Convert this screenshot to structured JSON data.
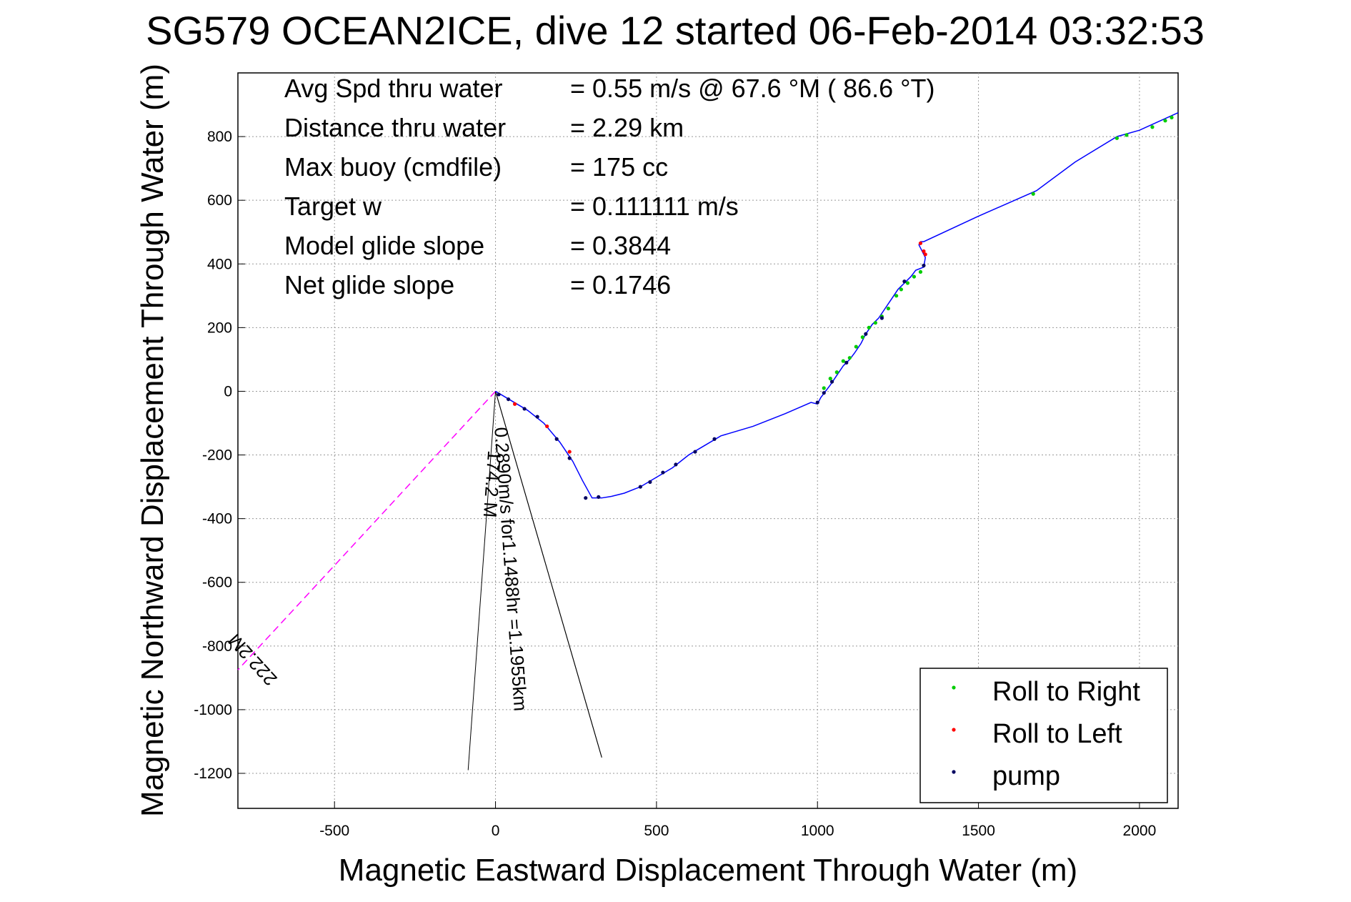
{
  "chart_data": {
    "type": "line",
    "title": "SG579 OCEAN2ICE, dive 12 started 06-Feb-2014 03:32:53",
    "xlabel": "Magnetic Eastward Displacement Through Water (m)",
    "ylabel": "Magnetic Northward Displacement Through Water (m)",
    "xlim": [
      -800,
      2120
    ],
    "ylim": [
      -1310,
      1000
    ],
    "xticks": [
      -500,
      0,
      500,
      1000,
      1500,
      2000
    ],
    "yticks": [
      -1200,
      -1000,
      -800,
      -600,
      -400,
      -200,
      0,
      200,
      400,
      600,
      800
    ],
    "grid": true,
    "legend_position": "bottom-right",
    "colors": {
      "track": "#0000ff",
      "current": "#ff00ff",
      "roll_right": "#00cc00",
      "roll_left": "#ff0000",
      "pump": "#000060",
      "lines": "#000000"
    },
    "stats": [
      {
        "label": "Avg Spd thru water",
        "value": "=  0.55 m/s @  67.6 °M ( 86.6 °T)"
      },
      {
        "label": "Distance thru water",
        "value": "=  2.29 km"
      },
      {
        "label": "Max buoy (cmdfile)",
        "value": "= 175 cc"
      },
      {
        "label": "Target w",
        "value": "= 0.111111 m/s"
      },
      {
        "label": "Model glide slope",
        "value": "= 0.3844"
      },
      {
        "label": "Net glide slope",
        "value": "= 0.1746"
      }
    ],
    "series": [
      {
        "name": "Roll to Right",
        "marker": "dot",
        "color": "#00cc00"
      },
      {
        "name": "Roll to Left",
        "marker": "dot",
        "color": "#ff0000"
      },
      {
        "name": "pump",
        "marker": "dot",
        "color": "#000060"
      }
    ],
    "track": [
      [
        0,
        0
      ],
      [
        50,
        -30
      ],
      [
        100,
        -60
      ],
      [
        150,
        -100
      ],
      [
        200,
        -160
      ],
      [
        240,
        -220
      ],
      [
        270,
        -280
      ],
      [
        300,
        -335
      ],
      [
        330,
        -335
      ],
      [
        360,
        -330
      ],
      [
        400,
        -320
      ],
      [
        450,
        -300
      ],
      [
        500,
        -270
      ],
      [
        550,
        -240
      ],
      [
        600,
        -200
      ],
      [
        650,
        -170
      ],
      [
        700,
        -140
      ],
      [
        800,
        -110
      ],
      [
        900,
        -70
      ],
      [
        980,
        -35
      ],
      [
        1000,
        -40
      ],
      [
        1010,
        -20
      ],
      [
        1025,
        0
      ],
      [
        1040,
        20
      ],
      [
        1060,
        50
      ],
      [
        1080,
        80
      ],
      [
        1100,
        100
      ],
      [
        1115,
        120
      ],
      [
        1135,
        150
      ],
      [
        1150,
        180
      ],
      [
        1170,
        210
      ],
      [
        1190,
        230
      ],
      [
        1210,
        260
      ],
      [
        1230,
        290
      ],
      [
        1250,
        320
      ],
      [
        1270,
        340
      ],
      [
        1290,
        360
      ],
      [
        1305,
        380
      ],
      [
        1330,
        390
      ],
      [
        1335,
        420
      ],
      [
        1325,
        440
      ],
      [
        1315,
        460
      ],
      [
        1320,
        470
      ],
      [
        1330,
        470
      ],
      [
        1500,
        550
      ],
      [
        1680,
        630
      ],
      [
        1800,
        720
      ],
      [
        1930,
        800
      ],
      [
        2000,
        820
      ],
      [
        2120,
        875
      ]
    ],
    "roll_right": [
      [
        1020,
        10
      ],
      [
        1040,
        40
      ],
      [
        1060,
        60
      ],
      [
        1080,
        95
      ],
      [
        1100,
        105
      ],
      [
        1120,
        140
      ],
      [
        1140,
        170
      ],
      [
        1160,
        200
      ],
      [
        1180,
        215
      ],
      [
        1200,
        235
      ],
      [
        1220,
        260
      ],
      [
        1245,
        300
      ],
      [
        1260,
        320
      ],
      [
        1280,
        340
      ],
      [
        1300,
        360
      ],
      [
        1320,
        375
      ],
      [
        1670,
        620
      ],
      [
        1930,
        795
      ],
      [
        1960,
        805
      ],
      [
        2040,
        830
      ],
      [
        2080,
        850
      ],
      [
        2100,
        860
      ]
    ],
    "roll_left": [
      [
        60,
        -40
      ],
      [
        160,
        -110
      ],
      [
        230,
        -190
      ],
      [
        1320,
        465
      ],
      [
        1330,
        440
      ],
      [
        1335,
        430
      ]
    ],
    "pump": [
      [
        10,
        -10
      ],
      [
        40,
        -25
      ],
      [
        90,
        -55
      ],
      [
        130,
        -80
      ],
      [
        190,
        -150
      ],
      [
        230,
        -210
      ],
      [
        280,
        -335
      ],
      [
        320,
        -332
      ],
      [
        450,
        -300
      ],
      [
        480,
        -285
      ],
      [
        520,
        -255
      ],
      [
        560,
        -230
      ],
      [
        620,
        -190
      ],
      [
        680,
        -150
      ],
      [
        1000,
        -35
      ],
      [
        1020,
        -5
      ],
      [
        1045,
        30
      ],
      [
        1090,
        90
      ],
      [
        1150,
        180
      ],
      [
        1200,
        230
      ],
      [
        1270,
        345
      ],
      [
        1330,
        395
      ]
    ],
    "current_line": [
      [
        0,
        0
      ],
      [
        -800,
        -875
      ]
    ],
    "current_label": "222.2M",
    "heading_lines": [
      [
        [
          0,
          0
        ],
        [
          -85,
          -1190
        ]
      ],
      [
        [
          0,
          0
        ],
        [
          330,
          -1150
        ]
      ],
      [
        [
          0,
          0
        ],
        [
          330,
          -1150
        ]
      ]
    ],
    "heading_label": "174.2 M",
    "drift_label": "0.2890m/s for1.1488hr =1.1955km"
  }
}
